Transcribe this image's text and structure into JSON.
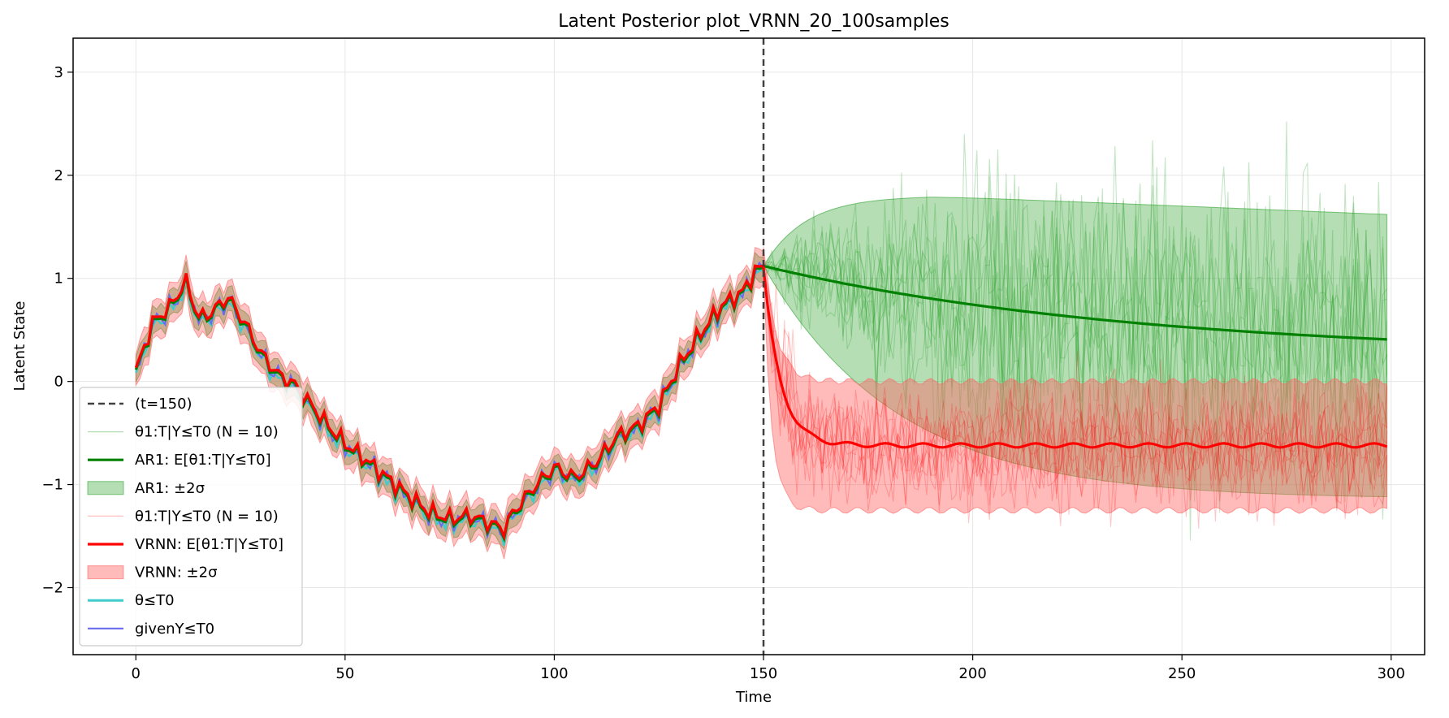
{
  "chart_data": {
    "type": "line",
    "title": "Latent Posterior plot_VRNN_20_100samples",
    "xlabel": "Time",
    "ylabel": "Latent State",
    "xlim": [
      -15,
      308
    ],
    "ylim": [
      -2.65,
      3.33
    ],
    "x_ticks": [
      0,
      50,
      100,
      150,
      200,
      250,
      300
    ],
    "y_ticks": [
      -2,
      -1,
      0,
      1,
      2,
      3
    ],
    "grid": true,
    "legend_position": "lower-left",
    "vline": {
      "x": 150,
      "label": "(t=150)"
    },
    "colors": {
      "ar1": "#008000",
      "ar1_band": "#2ca02c",
      "vrnn": "#ff0000",
      "vrnn_band": "#ff6666",
      "theta": "#40cccc",
      "given": "#6a6af0",
      "vline": "#404040"
    },
    "history_knots": {
      "x": [
        0,
        4,
        8,
        12,
        15,
        18,
        22,
        26,
        30,
        34,
        38,
        42,
        46,
        50,
        55,
        60,
        65,
        70,
        75,
        80,
        85,
        88,
        90,
        95,
        100,
        105,
        110,
        115,
        120,
        125,
        130,
        135,
        140,
        145,
        148,
        150
      ],
      "y": [
        0.08,
        0.55,
        0.7,
        0.95,
        0.6,
        0.65,
        0.8,
        0.55,
        0.25,
        0.05,
        -0.05,
        -0.25,
        -0.45,
        -0.62,
        -0.78,
        -0.95,
        -1.12,
        -1.28,
        -1.35,
        -1.32,
        -1.4,
        -1.45,
        -1.3,
        -1.05,
        -0.85,
        -0.95,
        -0.8,
        -0.55,
        -0.45,
        -0.25,
        0.15,
        0.45,
        0.72,
        0.85,
        1.05,
        1.1
      ]
    },
    "ar1_mean": {
      "start": 1.12,
      "end": 0.24,
      "band_upper_end": 1.62,
      "band_lower_end": -1.14,
      "band_upper_peak": 1.8,
      "band_lower_at_205": -0.2
    },
    "vrnn_mean": {
      "start": 1.1,
      "plateau": -0.62,
      "band_upper": 0.0,
      "band_lower": -1.25
    },
    "legend": [
      {
        "key": "vline",
        "label": "(t=150)"
      },
      {
        "key": "ar1_samples",
        "label": "θ1:T|Y≤T0 (N = 10)"
      },
      {
        "key": "ar1_mean",
        "label": "AR1: E[θ1:T|Y≤T0]"
      },
      {
        "key": "ar1_band",
        "label": "AR1: ±2σ"
      },
      {
        "key": "vrnn_samples",
        "label": "θ1:T|Y≤T0 (N = 10)"
      },
      {
        "key": "vrnn_mean",
        "label": "VRNN: E[θ1:T|Y≤T0]"
      },
      {
        "key": "vrnn_band",
        "label": "VRNN: ±2σ"
      },
      {
        "key": "theta",
        "label": "θ≤T0"
      },
      {
        "key": "given",
        "label": "givenY≤T0"
      }
    ]
  }
}
